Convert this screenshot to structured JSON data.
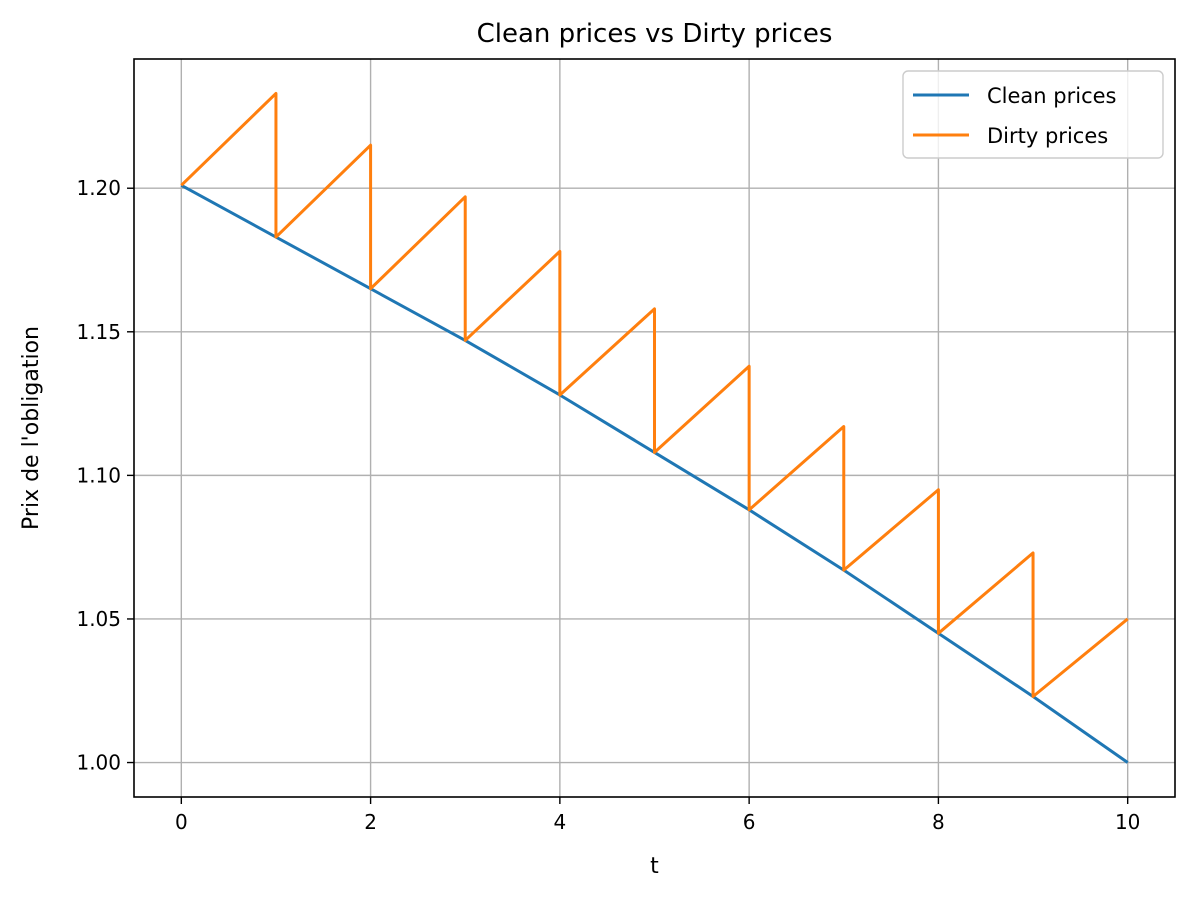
{
  "chart_data": {
    "type": "line",
    "title": "Clean prices vs Dirty prices",
    "xlabel": "t",
    "ylabel": "Prix de l'obligation",
    "xlim": [
      -0.5,
      10.5
    ],
    "ylim": [
      0.988,
      1.245
    ],
    "xticks": [
      0,
      2,
      4,
      6,
      8,
      10
    ],
    "xtick_labels": [
      "0",
      "2",
      "4",
      "6",
      "8",
      "10"
    ],
    "yticks": [
      1.0,
      1.05,
      1.1,
      1.15,
      1.2
    ],
    "ytick_labels": [
      "1.00",
      "1.05",
      "1.10",
      "1.15",
      "1.20"
    ],
    "grid": true,
    "legend_position": "top-right",
    "series": [
      {
        "name": "Clean prices",
        "color": "#1f77b4",
        "x": [
          0,
          1,
          2,
          3,
          4,
          5,
          6,
          7,
          8,
          9,
          10
        ],
        "y": [
          1.201,
          1.183,
          1.165,
          1.147,
          1.128,
          1.108,
          1.088,
          1.067,
          1.045,
          1.023,
          1.0
        ]
      },
      {
        "name": "Dirty prices",
        "color": "#ff7f0e",
        "x": [
          0,
          1,
          1,
          2,
          2,
          3,
          3,
          4,
          4,
          5,
          5,
          6,
          6,
          7,
          7,
          8,
          8,
          9,
          9,
          10
        ],
        "y": [
          1.201,
          1.233,
          1.183,
          1.215,
          1.165,
          1.197,
          1.147,
          1.178,
          1.128,
          1.158,
          1.108,
          1.138,
          1.088,
          1.117,
          1.067,
          1.095,
          1.045,
          1.073,
          1.023,
          1.05
        ]
      }
    ]
  }
}
